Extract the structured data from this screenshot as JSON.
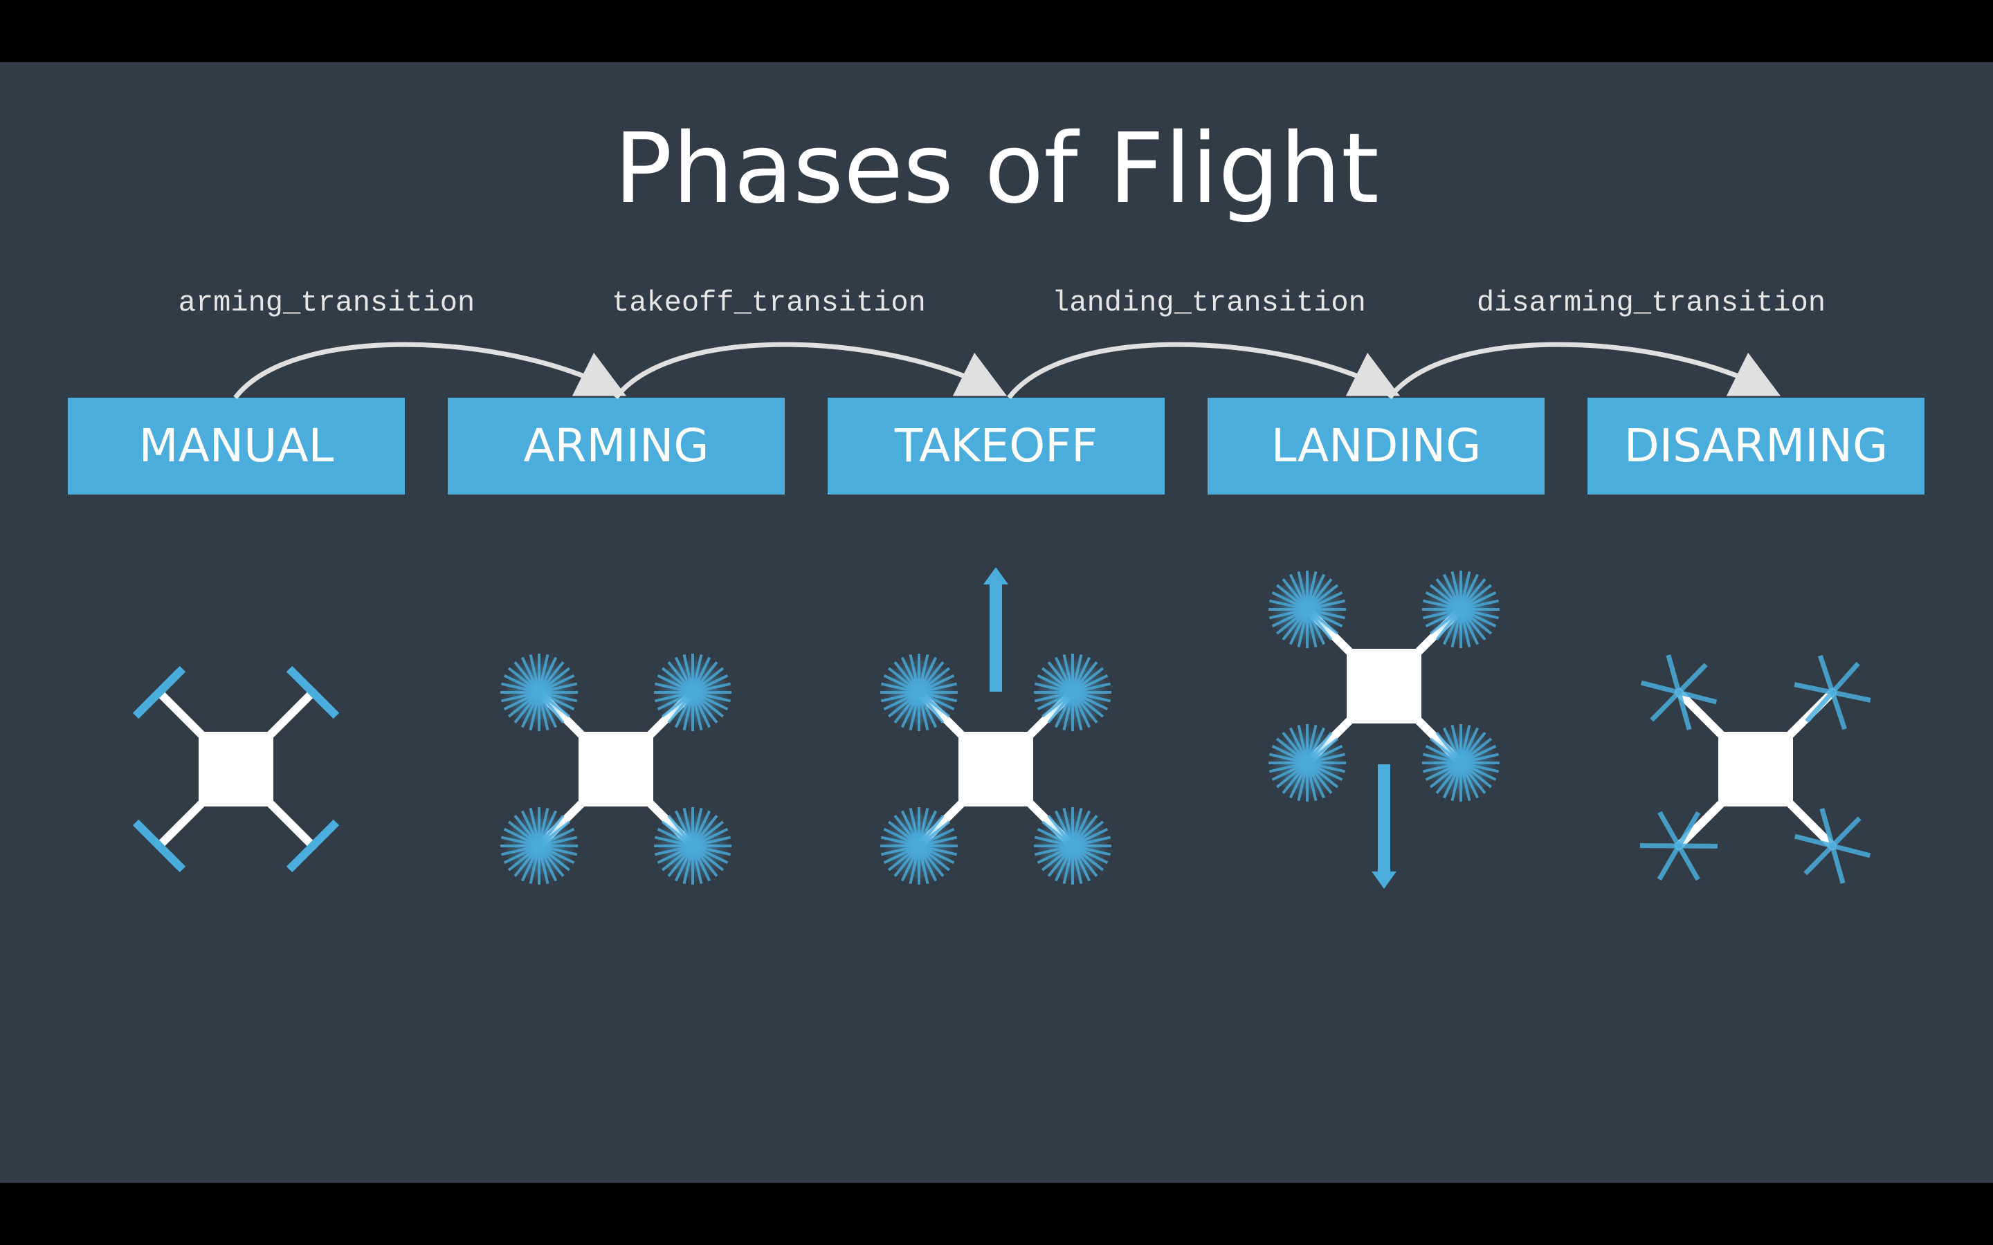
{
  "title": "Phases of Flight",
  "states": [
    "MANUAL",
    "ARMING",
    "TAKEOFF",
    "LANDING",
    "DISARMING"
  ],
  "transitions": [
    "arming_transition",
    "takeoff_transition",
    "landing_transition",
    "disarming_transition"
  ],
  "drones": [
    {
      "state": "MANUAL",
      "rotors": "idle"
    },
    {
      "state": "ARMING",
      "rotors": "spinning"
    },
    {
      "state": "TAKEOFF",
      "rotors": "spinning",
      "motion": "up"
    },
    {
      "state": "LANDING",
      "rotors": "spinning",
      "motion": "down"
    },
    {
      "state": "DISARMING",
      "rotors": "slowing"
    }
  ],
  "colors": {
    "background": "#323c47",
    "state_box": "#4baddc",
    "rotor": "#4baddc",
    "arrow": "#e0e0e0",
    "body": "#ffffff"
  }
}
